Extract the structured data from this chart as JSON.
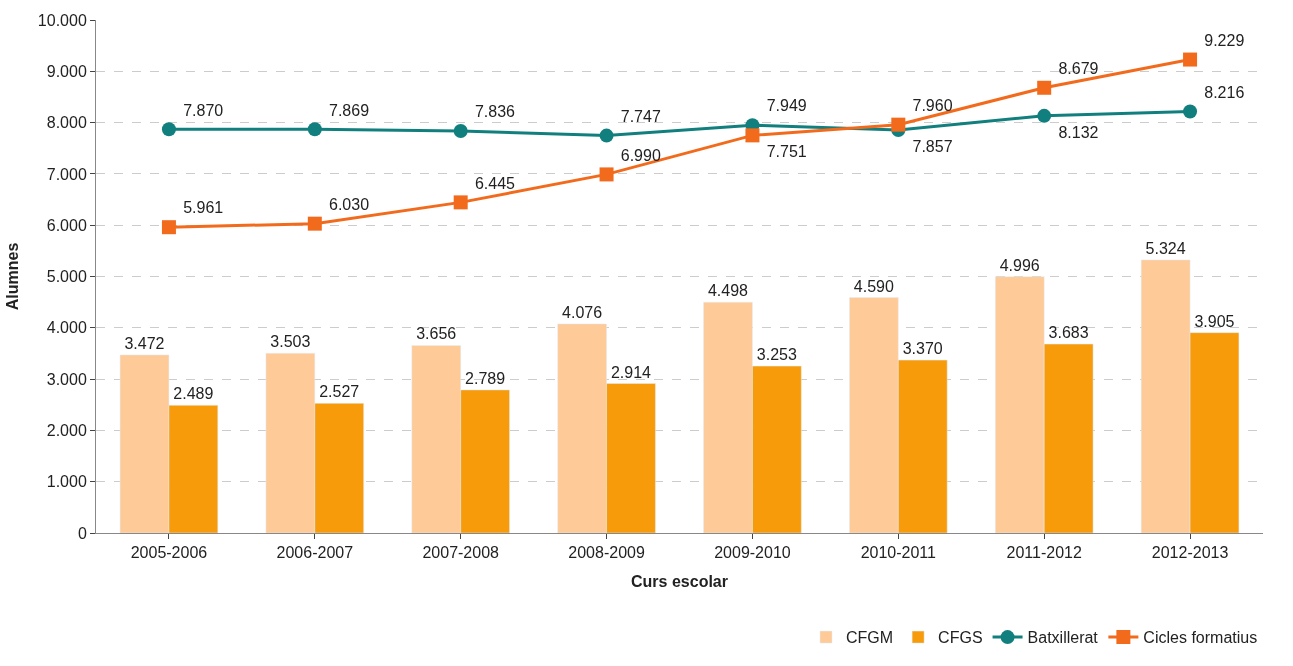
{
  "chart_data": {
    "type": "bar",
    "xlabel": "Curs escolar",
    "ylabel": "Alumnes",
    "categories": [
      "2005-2006",
      "2006-2007",
      "2007-2008",
      "2008-2009",
      "2009-2010",
      "2010-2011",
      "2011-2012",
      "2012-2013"
    ],
    "series": [
      {
        "name": "CFGM",
        "color": "#fdca98",
        "values": [
          3472,
          3503,
          3656,
          4076,
          4498,
          4590,
          4996,
          5324
        ],
        "value_labels": [
          "3.472",
          "3.503",
          "3.656",
          "4.076",
          "4.498",
          "4.590",
          "4.996",
          "5.324"
        ]
      },
      {
        "name": "CFGS",
        "color": "#f79b0a",
        "values": [
          2489,
          2527,
          2789,
          2914,
          3253,
          3370,
          3683,
          3905
        ],
        "value_labels": [
          "2.489",
          "2.527",
          "2.789",
          "2.914",
          "3.253",
          "3.370",
          "3.683",
          "3.905"
        ]
      },
      {
        "name": "Batxillerat",
        "type": "line",
        "marker": "circle",
        "color": "#127f7f",
        "values": [
          7870,
          7869,
          7836,
          7747,
          7949,
          7857,
          8132,
          8216
        ],
        "value_labels": [
          "7.870",
          "7.869",
          "7.836",
          "7.747",
          "7.949",
          "7.857",
          "8.132",
          "8.216"
        ]
      },
      {
        "name": "Cicles formatius",
        "type": "line",
        "marker": "square",
        "color": "#f26b1d",
        "values": [
          5961,
          6030,
          6445,
          6990,
          7751,
          7960,
          8679,
          9229
        ],
        "value_labels": [
          "5.961",
          "6.030",
          "6.445",
          "6.990",
          "7.751",
          "7.960",
          "8.679",
          "9.229"
        ]
      }
    ],
    "ylim": [
      0,
      10000
    ],
    "yticks": [
      0,
      {
        "value": 1000,
        "label": "1.000"
      },
      {
        "value": 2000,
        "label": "2.000"
      },
      {
        "value": 3000,
        "label": "3.000"
      },
      {
        "value": 4000,
        "label": "4.000"
      },
      {
        "value": 5000,
        "label": "5.000"
      },
      {
        "value": 6000,
        "label": "6.000"
      },
      {
        "value": 7000,
        "label": "7.000"
      },
      {
        "value": 8000,
        "label": "8.000"
      },
      {
        "value": 9000,
        "label": "9.000"
      },
      {
        "value": 10000,
        "label": "10.000"
      }
    ],
    "grid": "y",
    "legend": "bottom right"
  }
}
